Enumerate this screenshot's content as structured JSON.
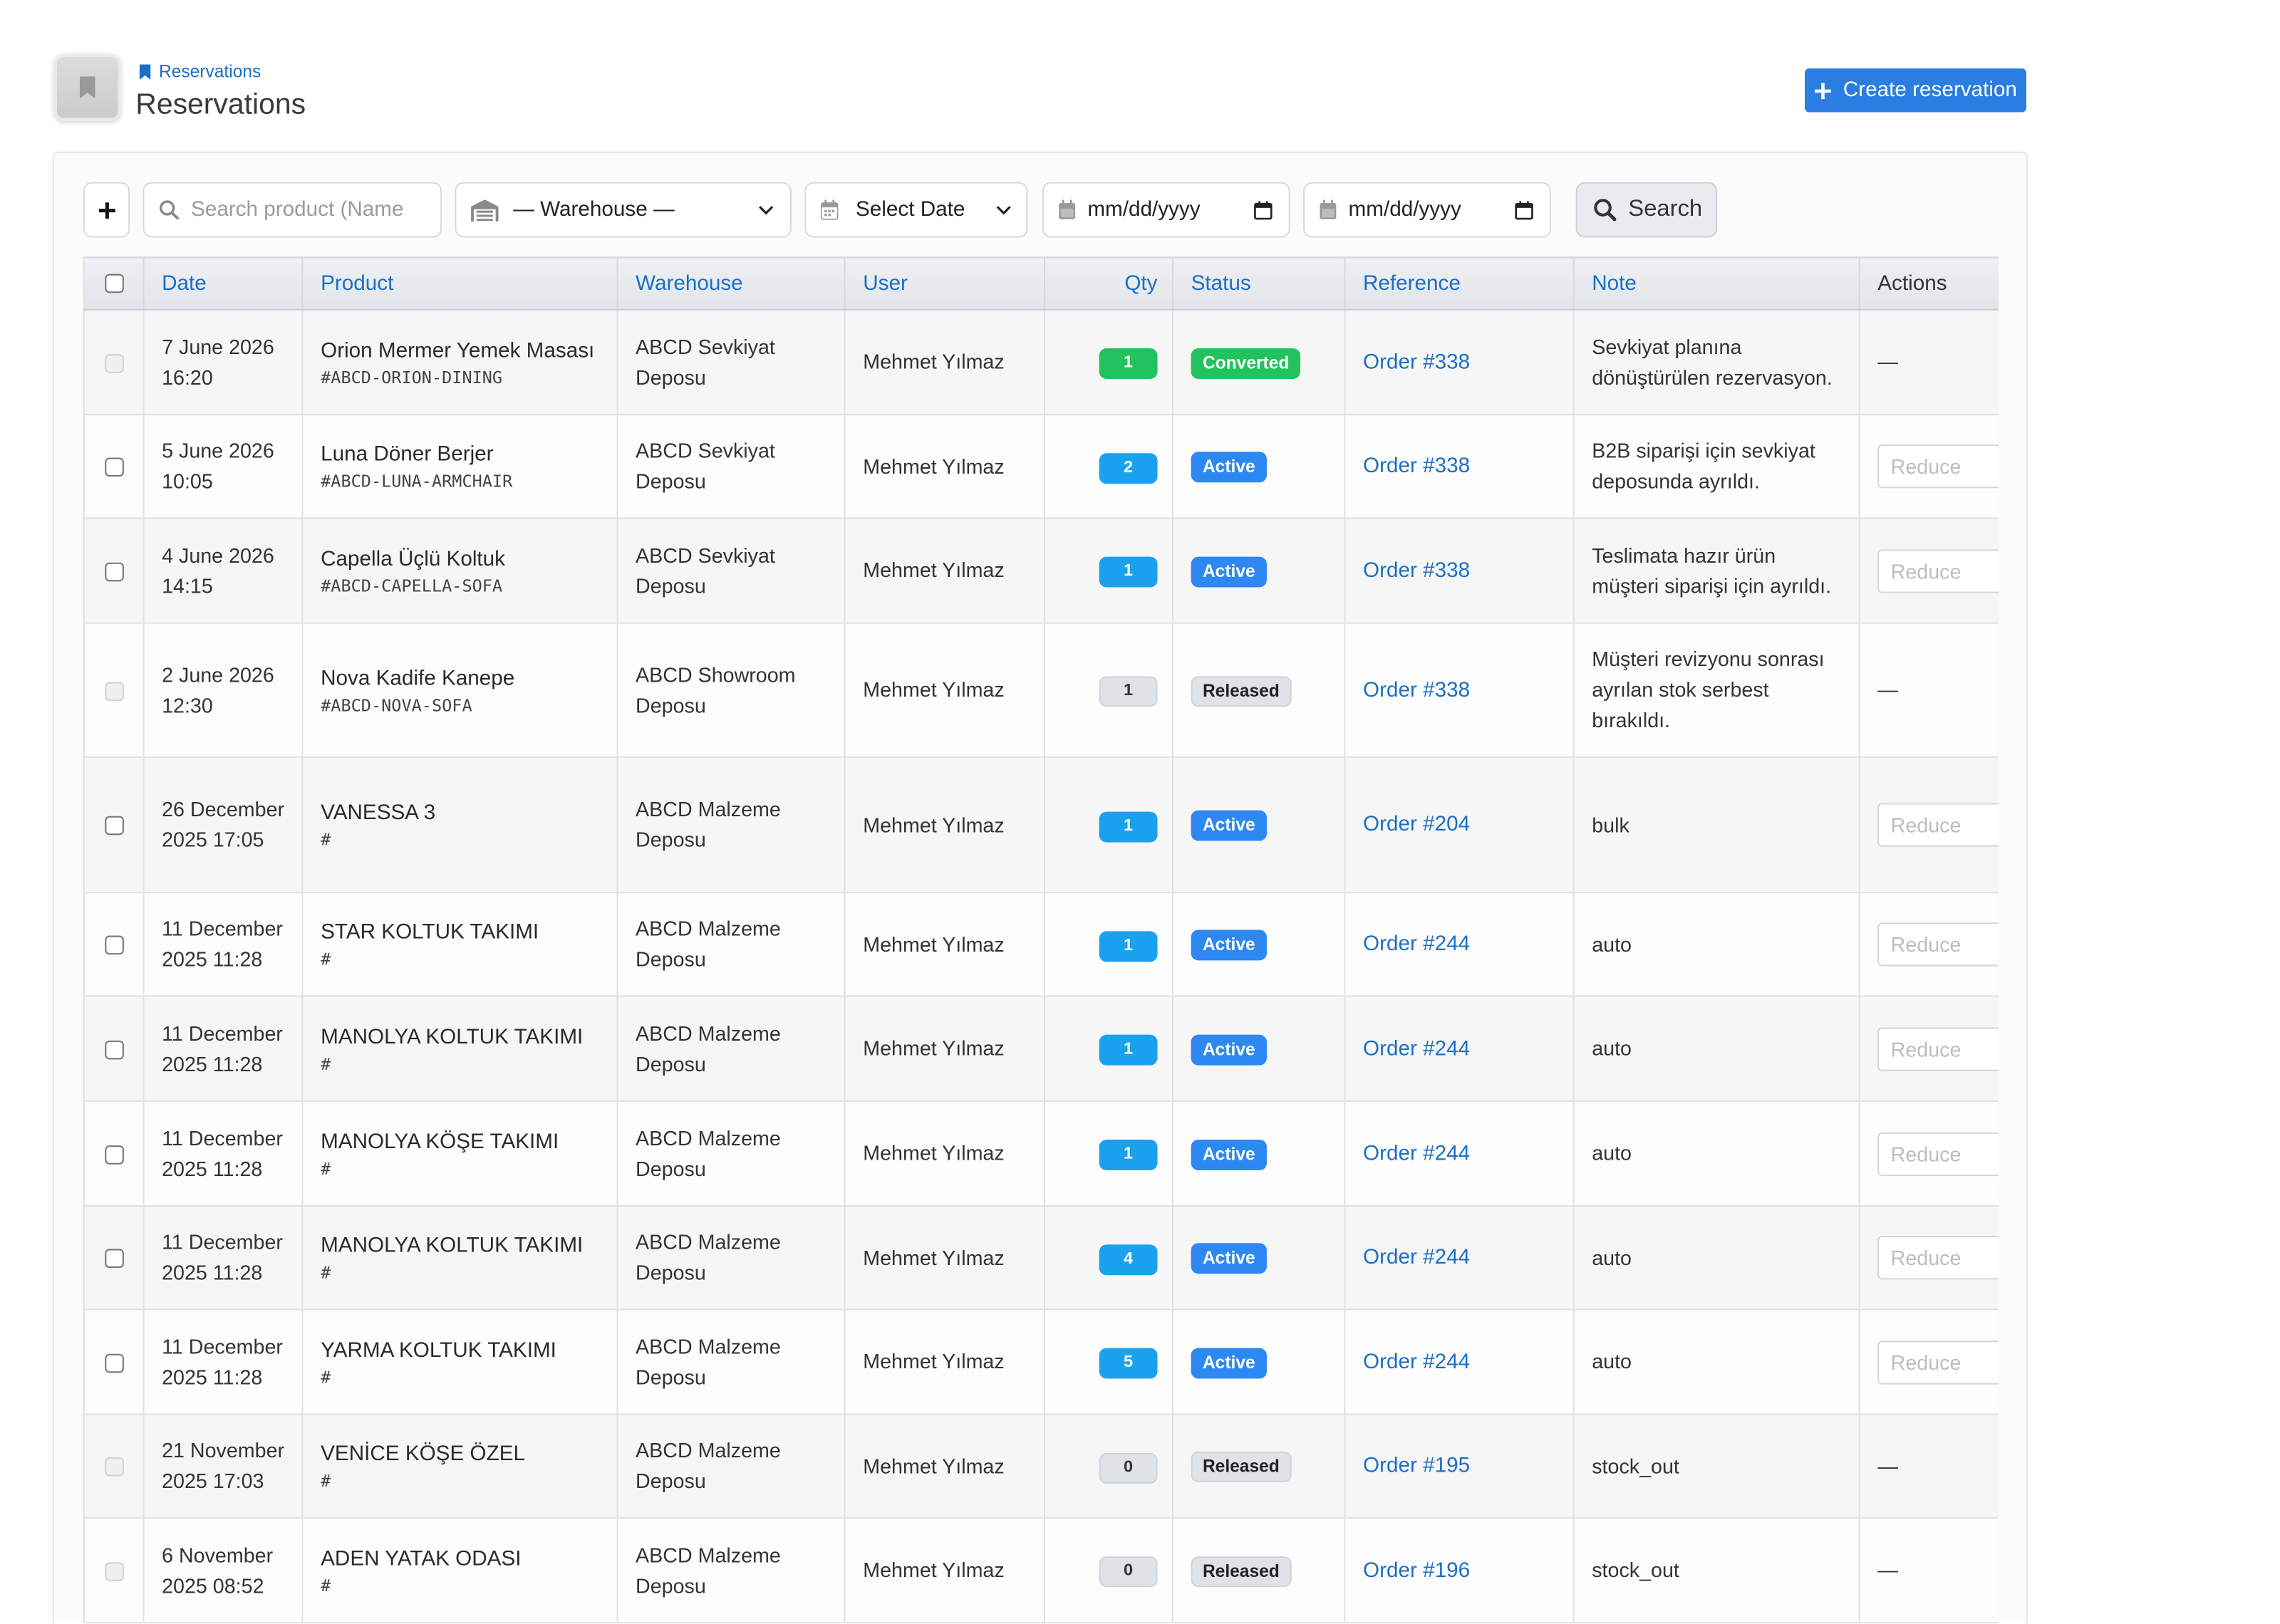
{
  "header": {
    "breadcrumb": "Reservations",
    "title": "Reservations",
    "create_button": "Create reservation"
  },
  "filters": {
    "search_placeholder": "Search product (Name",
    "warehouse_selected": "— Warehouse —",
    "date_range_selected": "Select Date",
    "date_from_placeholder": "mm/dd/yyyy",
    "date_to_placeholder": "mm/dd/yyyy",
    "search_button": "Search"
  },
  "table": {
    "columns": {
      "date": "Date",
      "product": "Product",
      "warehouse": "Warehouse",
      "user": "User",
      "qty": "Qty",
      "status": "Status",
      "reference": "Reference",
      "note": "Note",
      "actions": "Actions"
    },
    "reduce_placeholder": "Reduce",
    "empty_action": "—",
    "rows": [
      {
        "date": "7 June 2026 16:20",
        "product": "Orion Mermer Yemek Masası",
        "sku": "#ABCD-ORION-DINING",
        "warehouse": "ABCD Sevkiyat Deposu",
        "user": "Mehmet Yılmaz",
        "qty": 1,
        "status": "Converted",
        "reference": "Order #338",
        "note": "Sevkiyat planına dönüştürülen rezervasyon.",
        "selectable": false
      },
      {
        "date": "5 June 2026 10:05",
        "product": "Luna Döner Berjer",
        "sku": "#ABCD-LUNA-ARMCHAIR",
        "warehouse": "ABCD Sevkiyat Deposu",
        "user": "Mehmet Yılmaz",
        "qty": 2,
        "status": "Active",
        "reference": "Order #338",
        "note": "B2B siparişi için sevkiyat deposunda ayrıldı.",
        "selectable": true
      },
      {
        "date": "4 June 2026 14:15",
        "product": "Capella Üçlü Koltuk",
        "sku": "#ABCD-CAPELLA-SOFA",
        "warehouse": "ABCD Sevkiyat Deposu",
        "user": "Mehmet Yılmaz",
        "qty": 1,
        "status": "Active",
        "reference": "Order #338",
        "note": "Teslimata hazır ürün müşteri siparişi için ayrıldı.",
        "selectable": true
      },
      {
        "date": "2 June 2026 12:30",
        "product": "Nova Kadife Kanepe",
        "sku": "#ABCD-NOVA-SOFA",
        "warehouse": "ABCD Showroom Deposu",
        "user": "Mehmet Yılmaz",
        "qty": 1,
        "status": "Released",
        "reference": "Order #338",
        "note": "Müşteri revizyonu sonrası ayrılan stok serbest bırakıldı.",
        "selectable": false
      },
      {
        "date": "26 December 2025 17:05",
        "product": "VANESSA 3",
        "sku": "#",
        "warehouse": "ABCD Malzeme Deposu",
        "user": "Mehmet Yılmaz",
        "qty": 1,
        "status": "Active",
        "reference": "Order #204",
        "note": "bulk",
        "selectable": true
      },
      {
        "date": "11 December 2025 11:28",
        "product": "STAR KOLTUK TAKIMI",
        "sku": "#",
        "warehouse": "ABCD Malzeme Deposu",
        "user": "Mehmet Yılmaz",
        "qty": 1,
        "status": "Active",
        "reference": "Order #244",
        "note": "auto",
        "selectable": true
      },
      {
        "date": "11 December 2025 11:28",
        "product": "MANOLYA KOLTUK TAKIMI",
        "sku": "#",
        "warehouse": "ABCD Malzeme Deposu",
        "user": "Mehmet Yılmaz",
        "qty": 1,
        "status": "Active",
        "reference": "Order #244",
        "note": "auto",
        "selectable": true
      },
      {
        "date": "11 December 2025 11:28",
        "product": "MANOLYA KÖŞE TAKIMI",
        "sku": "#",
        "warehouse": "ABCD Malzeme Deposu",
        "user": "Mehmet Yılmaz",
        "qty": 1,
        "status": "Active",
        "reference": "Order #244",
        "note": "auto",
        "selectable": true
      },
      {
        "date": "11 December 2025 11:28",
        "product": "MANOLYA KOLTUK TAKIMI",
        "sku": "#",
        "warehouse": "ABCD Malzeme Deposu",
        "user": "Mehmet Yılmaz",
        "qty": 4,
        "status": "Active",
        "reference": "Order #244",
        "note": "auto",
        "selectable": true
      },
      {
        "date": "11 December 2025 11:28",
        "product": "YARMA KOLTUK TAKIMI",
        "sku": "#",
        "warehouse": "ABCD Malzeme Deposu",
        "user": "Mehmet Yılmaz",
        "qty": 5,
        "status": "Active",
        "reference": "Order #244",
        "note": "auto",
        "selectable": true
      },
      {
        "date": "21 November 2025 17:03",
        "product": "VENİCE KÖŞE ÖZEL",
        "sku": "#",
        "warehouse": "ABCD Malzeme Deposu",
        "user": "Mehmet Yılmaz",
        "qty": 0,
        "status": "Released",
        "reference": "Order #195",
        "note": "stock_out",
        "selectable": false
      },
      {
        "date": "6 November 2025 08:52",
        "product": "ADEN YATAK ODASI",
        "sku": "#",
        "warehouse": "ABCD Malzeme Deposu",
        "user": "Mehmet Yılmaz",
        "qty": 0,
        "status": "Released",
        "reference": "Order #196",
        "note": "stock_out",
        "selectable": false
      }
    ]
  },
  "icons": {
    "app": "bookmark-icon",
    "breadcrumb": "bookmark-icon",
    "create": "plus-icon",
    "add_filter": "plus-icon",
    "search": "search-icon",
    "warehouse": "warehouse-icon",
    "date": "calendar-icon",
    "dropdown": "chevron-down-icon",
    "date_picker": "calendar-picker-icon"
  },
  "colors": {
    "primary": "#2a7de1",
    "link": "#1b6fc4",
    "status_converted": "#22c35e",
    "status_active": "#2e88f1",
    "status_released": "#dfe3e8",
    "qty_active": "#1aa2ee"
  }
}
